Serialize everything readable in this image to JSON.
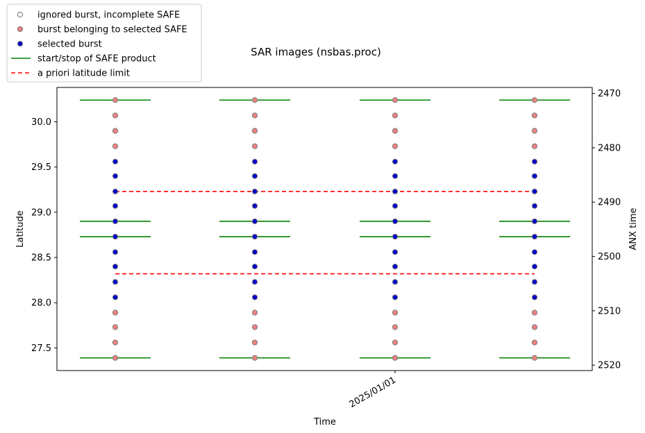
{
  "chart_data": {
    "type": "scatter",
    "title": "SAR images (nsbas.proc)",
    "xlabel": "Time",
    "ylabel": "Latitude",
    "y2label": "ANX time",
    "x_tick_labels": [
      "2025/01/01"
    ],
    "y_ticks": [
      "27.5",
      "28.0",
      "28.5",
      "29.0",
      "29.5",
      "30.0"
    ],
    "y_lim": [
      27.25,
      30.38
    ],
    "y2_ticks": [
      "2470",
      "2480",
      "2490",
      "2500",
      "2510",
      "2520"
    ],
    "y2_lim": [
      2521.0,
      2468.9
    ],
    "legend_position": "upper-left, outside axes",
    "legend": [
      {
        "label": "ignored burst, incomplete SAFE",
        "kind": "marker-hollow",
        "color": "#808080"
      },
      {
        "label": "burst belonging to selected SAFE",
        "kind": "marker",
        "color": "#f08080",
        "edge": "#808080"
      },
      {
        "label": "selected burst",
        "kind": "marker",
        "color": "#0000cd",
        "edge": "#808080"
      },
      {
        "label": "start/stop of SAFE product",
        "kind": "line",
        "color": "#008000"
      },
      {
        "label": "a priori latitude limit",
        "kind": "dashed",
        "color": "#ff0000"
      }
    ],
    "acquisition_count": 4,
    "bursts": [
      {
        "lat": 30.24,
        "status": "safe"
      },
      {
        "lat": 30.07,
        "status": "safe"
      },
      {
        "lat": 29.9,
        "status": "safe"
      },
      {
        "lat": 29.73,
        "status": "safe"
      },
      {
        "lat": 29.56,
        "status": "selected"
      },
      {
        "lat": 29.4,
        "status": "selected"
      },
      {
        "lat": 29.23,
        "status": "selected"
      },
      {
        "lat": 29.07,
        "status": "selected"
      },
      {
        "lat": 28.9,
        "status": "selected"
      },
      {
        "lat": 28.73,
        "status": "selected"
      },
      {
        "lat": 28.56,
        "status": "selected"
      },
      {
        "lat": 28.4,
        "status": "selected"
      },
      {
        "lat": 28.23,
        "status": "selected"
      },
      {
        "lat": 28.06,
        "status": "selected"
      },
      {
        "lat": 27.89,
        "status": "safe"
      },
      {
        "lat": 27.73,
        "status": "safe"
      },
      {
        "lat": 27.56,
        "status": "safe"
      },
      {
        "lat": 27.39,
        "status": "safe"
      }
    ],
    "safe_boundaries_lat": [
      30.24,
      28.9,
      28.73,
      27.39
    ],
    "a_priori_latitude_limits": [
      29.23,
      28.32
    ],
    "colors": {
      "safe": "#f08080",
      "selected": "#0000cd",
      "edge": "#808080",
      "boundary": "#008000",
      "limit": "#ff0000"
    }
  }
}
